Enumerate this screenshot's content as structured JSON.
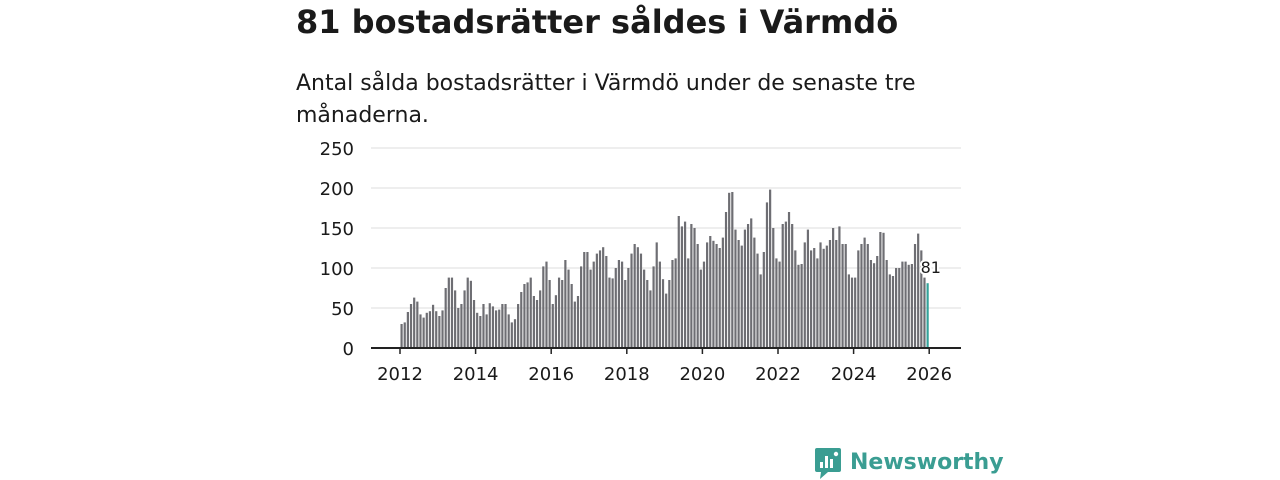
{
  "title": "81 bostadsrätter såldes i Värmdö",
  "subtitle": "Antal sålda bostadsrätter i Värmdö under de senaste tre månaderna.",
  "brand": "Newsworthy",
  "colors": {
    "bar": "#6e6e73",
    "highlight": "#34a39a",
    "brand": "#3a9d92",
    "grid": "#dddddd",
    "axis": "#222222"
  },
  "chart_data": {
    "type": "bar",
    "title": "81 bostadsrätter såldes i Värmdö",
    "subtitle": "Antal sålda bostadsrätter i Värmdö under de senaste tre månaderna.",
    "xlabel": "",
    "ylabel": "",
    "ylim": [
      0,
      250
    ],
    "yticks": [
      "0",
      "50",
      "100",
      "150",
      "200",
      "250"
    ],
    "xticks": [
      "2012",
      "2014",
      "2016",
      "2018",
      "2020",
      "2022",
      "2024",
      "2026"
    ],
    "start": "2012-01",
    "frequency": "monthly",
    "values": [
      30,
      32,
      45,
      55,
      63,
      58,
      42,
      38,
      44,
      46,
      54,
      46,
      40,
      47,
      75,
      88,
      88,
      72,
      50,
      55,
      72,
      88,
      84,
      60,
      44,
      40,
      55,
      42,
      56,
      52,
      47,
      48,
      55,
      55,
      42,
      32,
      36,
      55,
      70,
      80,
      82,
      88,
      65,
      60,
      72,
      102,
      108,
      85,
      55,
      66,
      88,
      85,
      110,
      98,
      80,
      58,
      65,
      102,
      120,
      120,
      98,
      108,
      118,
      122,
      126,
      115,
      88,
      87,
      100,
      110,
      108,
      85,
      100,
      118,
      130,
      126,
      118,
      98,
      85,
      72,
      102,
      132,
      108,
      86,
      68,
      85,
      110,
      112,
      165,
      152,
      158,
      112,
      155,
      150,
      130,
      98,
      108,
      132,
      140,
      134,
      130,
      125,
      138,
      170,
      194,
      195,
      148,
      135,
      128,
      148,
      155,
      162,
      138,
      118,
      92,
      120,
      182,
      198,
      150,
      112,
      108,
      155,
      158,
      170,
      155,
      122,
      104,
      105,
      132,
      148,
      122,
      125,
      112,
      132,
      124,
      128,
      135,
      150,
      135,
      152,
      130,
      130,
      92,
      88,
      88,
      122,
      130,
      138,
      130,
      110,
      106,
      115,
      145,
      144,
      110,
      92,
      90,
      100,
      100,
      108,
      108,
      104,
      105,
      130,
      143,
      122,
      88,
      81
    ],
    "highlight": {
      "index": 167,
      "value": 81,
      "label": "81"
    }
  }
}
